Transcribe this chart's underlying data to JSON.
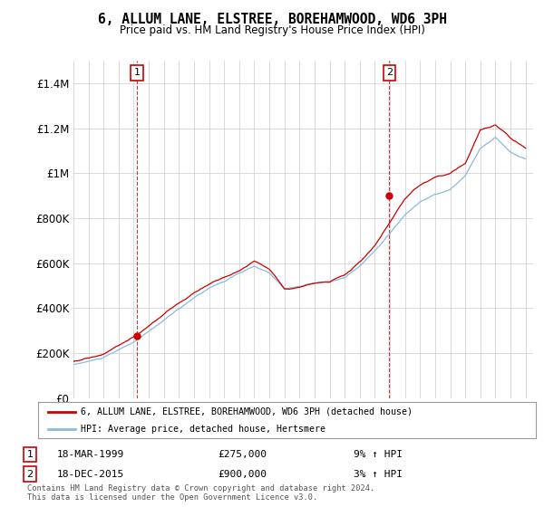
{
  "title": "6, ALLUM LANE, ELSTREE, BOREHAMWOOD, WD6 3PH",
  "subtitle": "Price paid vs. HM Land Registry's House Price Index (HPI)",
  "ylim": [
    0,
    1500000
  ],
  "yticks": [
    0,
    200000,
    400000,
    600000,
    800000,
    1000000,
    1200000,
    1400000
  ],
  "ytick_labels": [
    "£0",
    "£200K",
    "£400K",
    "£600K",
    "£800K",
    "£1M",
    "£1.2M",
    "£1.4M"
  ],
  "sale1_date_num": 1999.21,
  "sale1_price": 275000,
  "sale2_date_num": 2015.96,
  "sale2_price": 900000,
  "line1_color": "#cc0000",
  "line2_color": "#88bbdd",
  "marker_color": "#cc0000",
  "vline_color": "#cc0000",
  "grid_color": "#cccccc",
  "background_color": "#ffffff",
  "legend1_text": "6, ALLUM LANE, ELSTREE, BOREHAMWOOD, WD6 3PH (detached house)",
  "legend2_text": "HPI: Average price, detached house, Hertsmere",
  "annotation1_label": "1",
  "annotation1_date": "18-MAR-1999",
  "annotation1_price": "£275,000",
  "annotation1_hpi": "9% ↑ HPI",
  "annotation2_label": "2",
  "annotation2_date": "18-DEC-2015",
  "annotation2_price": "£900,000",
  "annotation2_hpi": "3% ↑ HPI",
  "footnote_line1": "Contains HM Land Registry data © Crown copyright and database right 2024.",
  "footnote_line2": "This data is licensed under the Open Government Licence v3.0.",
  "xmin": 1995,
  "xmax": 2025.5,
  "hpi_x": [
    1995,
    1996,
    1997,
    1998,
    1999,
    2000,
    2001,
    2002,
    2003,
    2004,
    2005,
    2006,
    2007,
    2008,
    2009,
    2010,
    2011,
    2012,
    2013,
    2014,
    2015,
    2016,
    2017,
    2018,
    2019,
    2020,
    2021,
    2022,
    2023,
    2024,
    2025
  ],
  "hpi_y": [
    148000,
    162000,
    178000,
    210000,
    245000,
    290000,
    340000,
    390000,
    440000,
    485000,
    515000,
    548000,
    578000,
    545000,
    478000,
    488000,
    502000,
    508000,
    528000,
    578000,
    648000,
    728000,
    808000,
    868000,
    898000,
    918000,
    978000,
    1098000,
    1148000,
    1078000,
    1048000
  ],
  "prop_x": [
    1995,
    1996,
    1997,
    1998,
    1999,
    2000,
    2001,
    2002,
    2003,
    2004,
    2005,
    2006,
    2007,
    2008,
    2009,
    2010,
    2011,
    2012,
    2013,
    2014,
    2015,
    2016,
    2017,
    2018,
    2019,
    2020,
    2021,
    2022,
    2023,
    2024,
    2025
  ],
  "prop_y": [
    162000,
    178000,
    196000,
    235000,
    275000,
    325000,
    375000,
    425000,
    472000,
    512000,
    542000,
    572000,
    612000,
    578000,
    498000,
    508000,
    522000,
    532000,
    562000,
    618000,
    692000,
    788000,
    888000,
    948000,
    978000,
    998000,
    1048000,
    1198000,
    1218000,
    1158000,
    1118000
  ]
}
